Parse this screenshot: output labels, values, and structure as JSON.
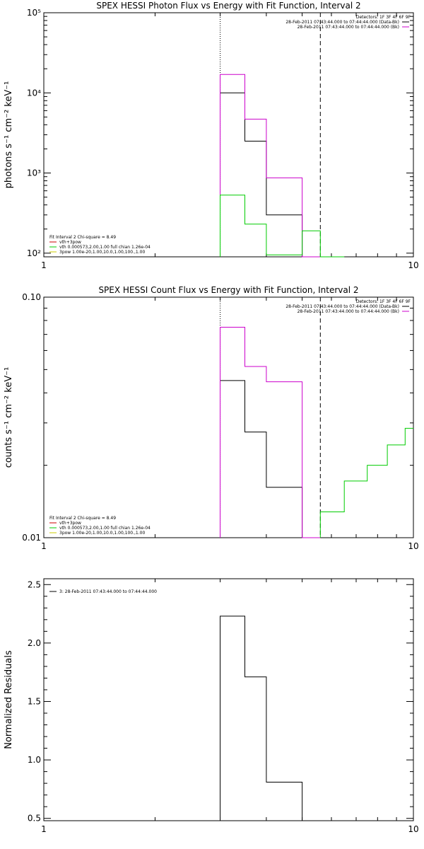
{
  "chart_data": [
    {
      "type": "step",
      "title": "SPEX HESSI Photon Flux vs Energy with Fit Function, Interval 2",
      "xlabel": "",
      "ylabel": "photons s⁻¹ cm⁻² keV⁻¹",
      "xscale": "log",
      "yscale": "log",
      "xlim": [
        1,
        10
      ],
      "ylim": [
        90,
        100000
      ],
      "xtick_labels": [
        {
          "v": 1,
          "t": "1"
        },
        {
          "v": 10,
          "t": "10"
        }
      ],
      "ytick_labels": [
        {
          "v": 100,
          "t": "10²"
        },
        {
          "v": 1000,
          "t": "10³"
        },
        {
          "v": 10000,
          "t": "10⁴"
        },
        {
          "v": 100000,
          "t": "10⁵"
        }
      ],
      "vlines": [
        {
          "x": 3.0,
          "style": "dotted"
        },
        {
          "x": 5.6,
          "style": "dashed"
        }
      ],
      "legend_top_right": [
        {
          "text": "Detectors: 1F 3F 4F 6F 9F",
          "color": ""
        },
        {
          "text": "28-Feb-2011 07:43:44.000 to 07:44:44.000 (Data-Bk)",
          "color": "#000000"
        },
        {
          "text": "28-Feb-2011 07:43:44.000 to 07:44:44.000 (Bk)",
          "color": "#cc00cc"
        }
      ],
      "legend_bottom_left": [
        {
          "text": "Fit Interval  2   Chi-square = 8.49",
          "color": ""
        },
        {
          "text": "vth+3pow",
          "color": "#cc0000"
        },
        {
          "text": "vth 0.000573,2.00,1.00   full chian 1.26e-04",
          "color": "#00cc00"
        },
        {
          "text": "3pow 1.00e-20,1.00,10.0,1.00,100.,1.00",
          "color": "#cccc00"
        }
      ],
      "series": [
        {
          "color": "#000000",
          "edges": [
            3.0,
            3.5,
            4.0,
            5.0,
            5.6
          ],
          "values": [
            10000,
            2500,
            300,
            90
          ]
        },
        {
          "color": "#cc00cc",
          "edges": [
            3.0,
            3.5,
            4.0,
            5.0,
            5.6
          ],
          "values": [
            17000,
            4700,
            870,
            90
          ]
        },
        {
          "color": "#00cc00",
          "edges": [
            3.0,
            3.5,
            4.0,
            5.0,
            5.6,
            6.5
          ],
          "values": [
            530,
            230,
            95,
            190,
            90
          ]
        }
      ]
    },
    {
      "type": "step",
      "title": "SPEX HESSI Count Flux vs Energy with Fit Function, Interval 2",
      "xlabel": "",
      "ylabel": "counts s⁻¹ cm⁻² keV⁻¹",
      "xscale": "log",
      "yscale": "log",
      "xlim": [
        1,
        10
      ],
      "ylim": [
        0.01,
        0.1
      ],
      "xtick_labels": [
        {
          "v": 1,
          "t": "1"
        },
        {
          "v": 10,
          "t": "10"
        }
      ],
      "ytick_labels": [
        {
          "v": 0.01,
          "t": "0.01"
        },
        {
          "v": 0.1,
          "t": "0.10"
        }
      ],
      "vlines": [
        {
          "x": 3.0,
          "style": "dotted"
        },
        {
          "x": 5.6,
          "style": "dashed"
        }
      ],
      "legend_top_right": [
        {
          "text": "Detectors: 1F 3F 4F 6F 9F",
          "color": ""
        },
        {
          "text": "28-Feb-2011 07:43:44.000 to 07:44:44.000 (Data-Bk)",
          "color": "#000000"
        },
        {
          "text": "28-Feb-2011 07:43:44.000 to 07:44:44.000 (Bk)",
          "color": "#cc00cc"
        }
      ],
      "legend_bottom_left": [
        {
          "text": "Fit Interval  2   Chi-square = 8.49",
          "color": ""
        },
        {
          "text": "vth+3pow",
          "color": "#cc0000"
        },
        {
          "text": "vth 0.000573,2.00,1.00   full chian 1.26e-04",
          "color": "#00cc00"
        },
        {
          "text": "3pow 1.00e-20,1.00,10.0,1.00,100.,1.00",
          "color": "#cccc00"
        }
      ],
      "series": [
        {
          "color": "#000000",
          "edges": [
            3.0,
            3.5,
            4.0,
            5.0,
            5.6
          ],
          "values": [
            0.045,
            0.0275,
            0.0162,
            0.01
          ]
        },
        {
          "color": "#cc00cc",
          "edges": [
            3.0,
            3.5,
            4.0,
            5.0,
            5.6
          ],
          "values": [
            0.075,
            0.0515,
            0.0445,
            0.01
          ]
        },
        {
          "color": "#00cc00",
          "edges": [
            5.6,
            6.5,
            7.5,
            8.5,
            9.5,
            10.0
          ],
          "values": [
            0.0128,
            0.0172,
            0.02,
            0.0243,
            0.0285
          ]
        }
      ]
    },
    {
      "type": "step",
      "title": "",
      "xlabel": "",
      "ylabel": "Normalized Residuals",
      "xscale": "log",
      "yscale": "linear",
      "xlim": [
        1,
        10
      ],
      "ylim": [
        0.48,
        2.55
      ],
      "xtick_labels": [
        {
          "v": 1,
          "t": "1"
        },
        {
          "v": 10,
          "t": "10"
        }
      ],
      "ytick_labels": [
        {
          "v": 0.5,
          "t": "0.5"
        },
        {
          "v": 1.0,
          "t": "1.0"
        },
        {
          "v": 1.5,
          "t": "1.5"
        },
        {
          "v": 2.0,
          "t": "2.0"
        },
        {
          "v": 2.5,
          "t": "2.5"
        }
      ],
      "vlines": [],
      "legend_top_left": [
        {
          "text": "3: 28-Feb-2011 07:43:44.000 to 07:44:44.000",
          "color": "#000000"
        }
      ],
      "series": [
        {
          "color": "#000000",
          "edges": [
            3.0,
            3.5,
            4.0,
            5.0,
            5.6
          ],
          "values": [
            2.23,
            1.71,
            0.81,
            0.48
          ]
        }
      ]
    }
  ]
}
